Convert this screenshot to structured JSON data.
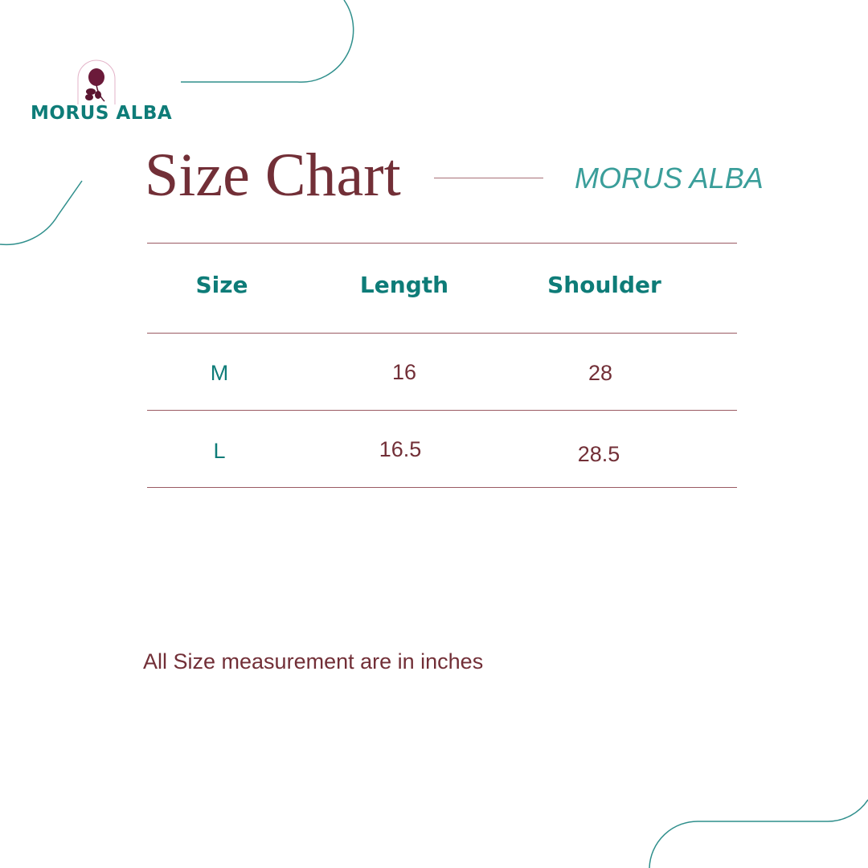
{
  "logo": {
    "text": "MORUS ALBA",
    "icon": "rose-flower-icon"
  },
  "title": "Size Chart",
  "brand": "MORUS ALBA",
  "table": {
    "headers": [
      "Size",
      "Length",
      "Shoulder"
    ],
    "rows": [
      [
        "M",
        "16",
        "28"
      ],
      [
        "L",
        "16.5",
        "28.5"
      ]
    ]
  },
  "note": "All Size measurement are in inches",
  "colors": {
    "maroon": "#722f37",
    "teal": "#0e7c78",
    "light_teal": "#3a9e9a"
  }
}
